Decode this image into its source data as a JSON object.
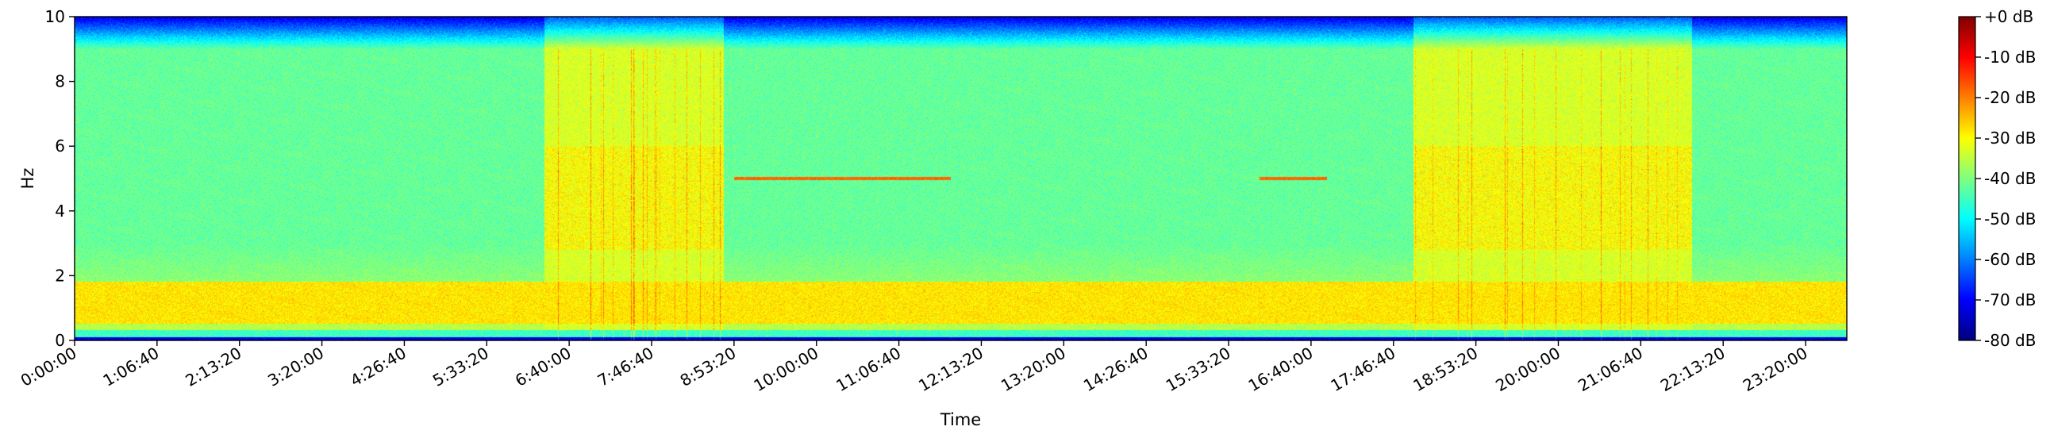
{
  "chart_data": {
    "type": "heatmap",
    "title": "",
    "xlabel": "Time",
    "ylabel": "Hz",
    "x_tick_labels": [
      "0:00:00",
      "1:06:40",
      "2:13:20",
      "3:20:00",
      "4:26:40",
      "5:33:20",
      "6:40:00",
      "7:46:40",
      "8:53:20",
      "10:00:00",
      "11:06:40",
      "12:13:20",
      "13:20:00",
      "14:26:40",
      "15:33:20",
      "16:40:00",
      "17:46:40",
      "18:53:20",
      "20:00:00",
      "21:06:40",
      "22:13:20",
      "23:20:00"
    ],
    "x_tick_seconds": [
      0,
      4000,
      8000,
      12000,
      16000,
      20000,
      24000,
      28000,
      32000,
      36000,
      40000,
      44000,
      48000,
      52000,
      56000,
      60000,
      64000,
      68000,
      72000,
      76000,
      80000,
      84000
    ],
    "xlim_seconds": [
      0,
      86000
    ],
    "ylim": [
      0,
      10
    ],
    "y_ticks": [
      0,
      2,
      4,
      6,
      8,
      10
    ],
    "y_tick_labels": [
      "0",
      "2",
      "4",
      "6",
      "8",
      "10"
    ],
    "colormap": "jet",
    "colorbar": {
      "range_db": [
        -80,
        0
      ],
      "ticks": [
        0,
        -10,
        -20,
        -30,
        -40,
        -50,
        -60,
        -70,
        -80
      ],
      "tick_labels": [
        "+0 dB",
        "-10 dB",
        "-20 dB",
        "-30 dB",
        "-40 dB",
        "-50 dB",
        "-60 dB",
        "-70 dB",
        "-80 dB"
      ]
    },
    "features": {
      "active_periods_seconds": [
        [
          22800,
          31500
        ],
        [
          65000,
          78500
        ]
      ],
      "tone_lines": [
        {
          "hz": 5.0,
          "start_seconds": 32000,
          "end_seconds": 42500,
          "db": -18
        },
        {
          "hz": 5.0,
          "start_seconds": 57500,
          "end_seconds": 60800,
          "db": -18
        }
      ],
      "low_frequency_band_hz": [
        0.5,
        1.8
      ],
      "low_frequency_band_db": -28,
      "high_frequency_rolloff_hz": 9.0,
      "quiet_floor_db": -42,
      "active_floor_db": -33
    }
  }
}
